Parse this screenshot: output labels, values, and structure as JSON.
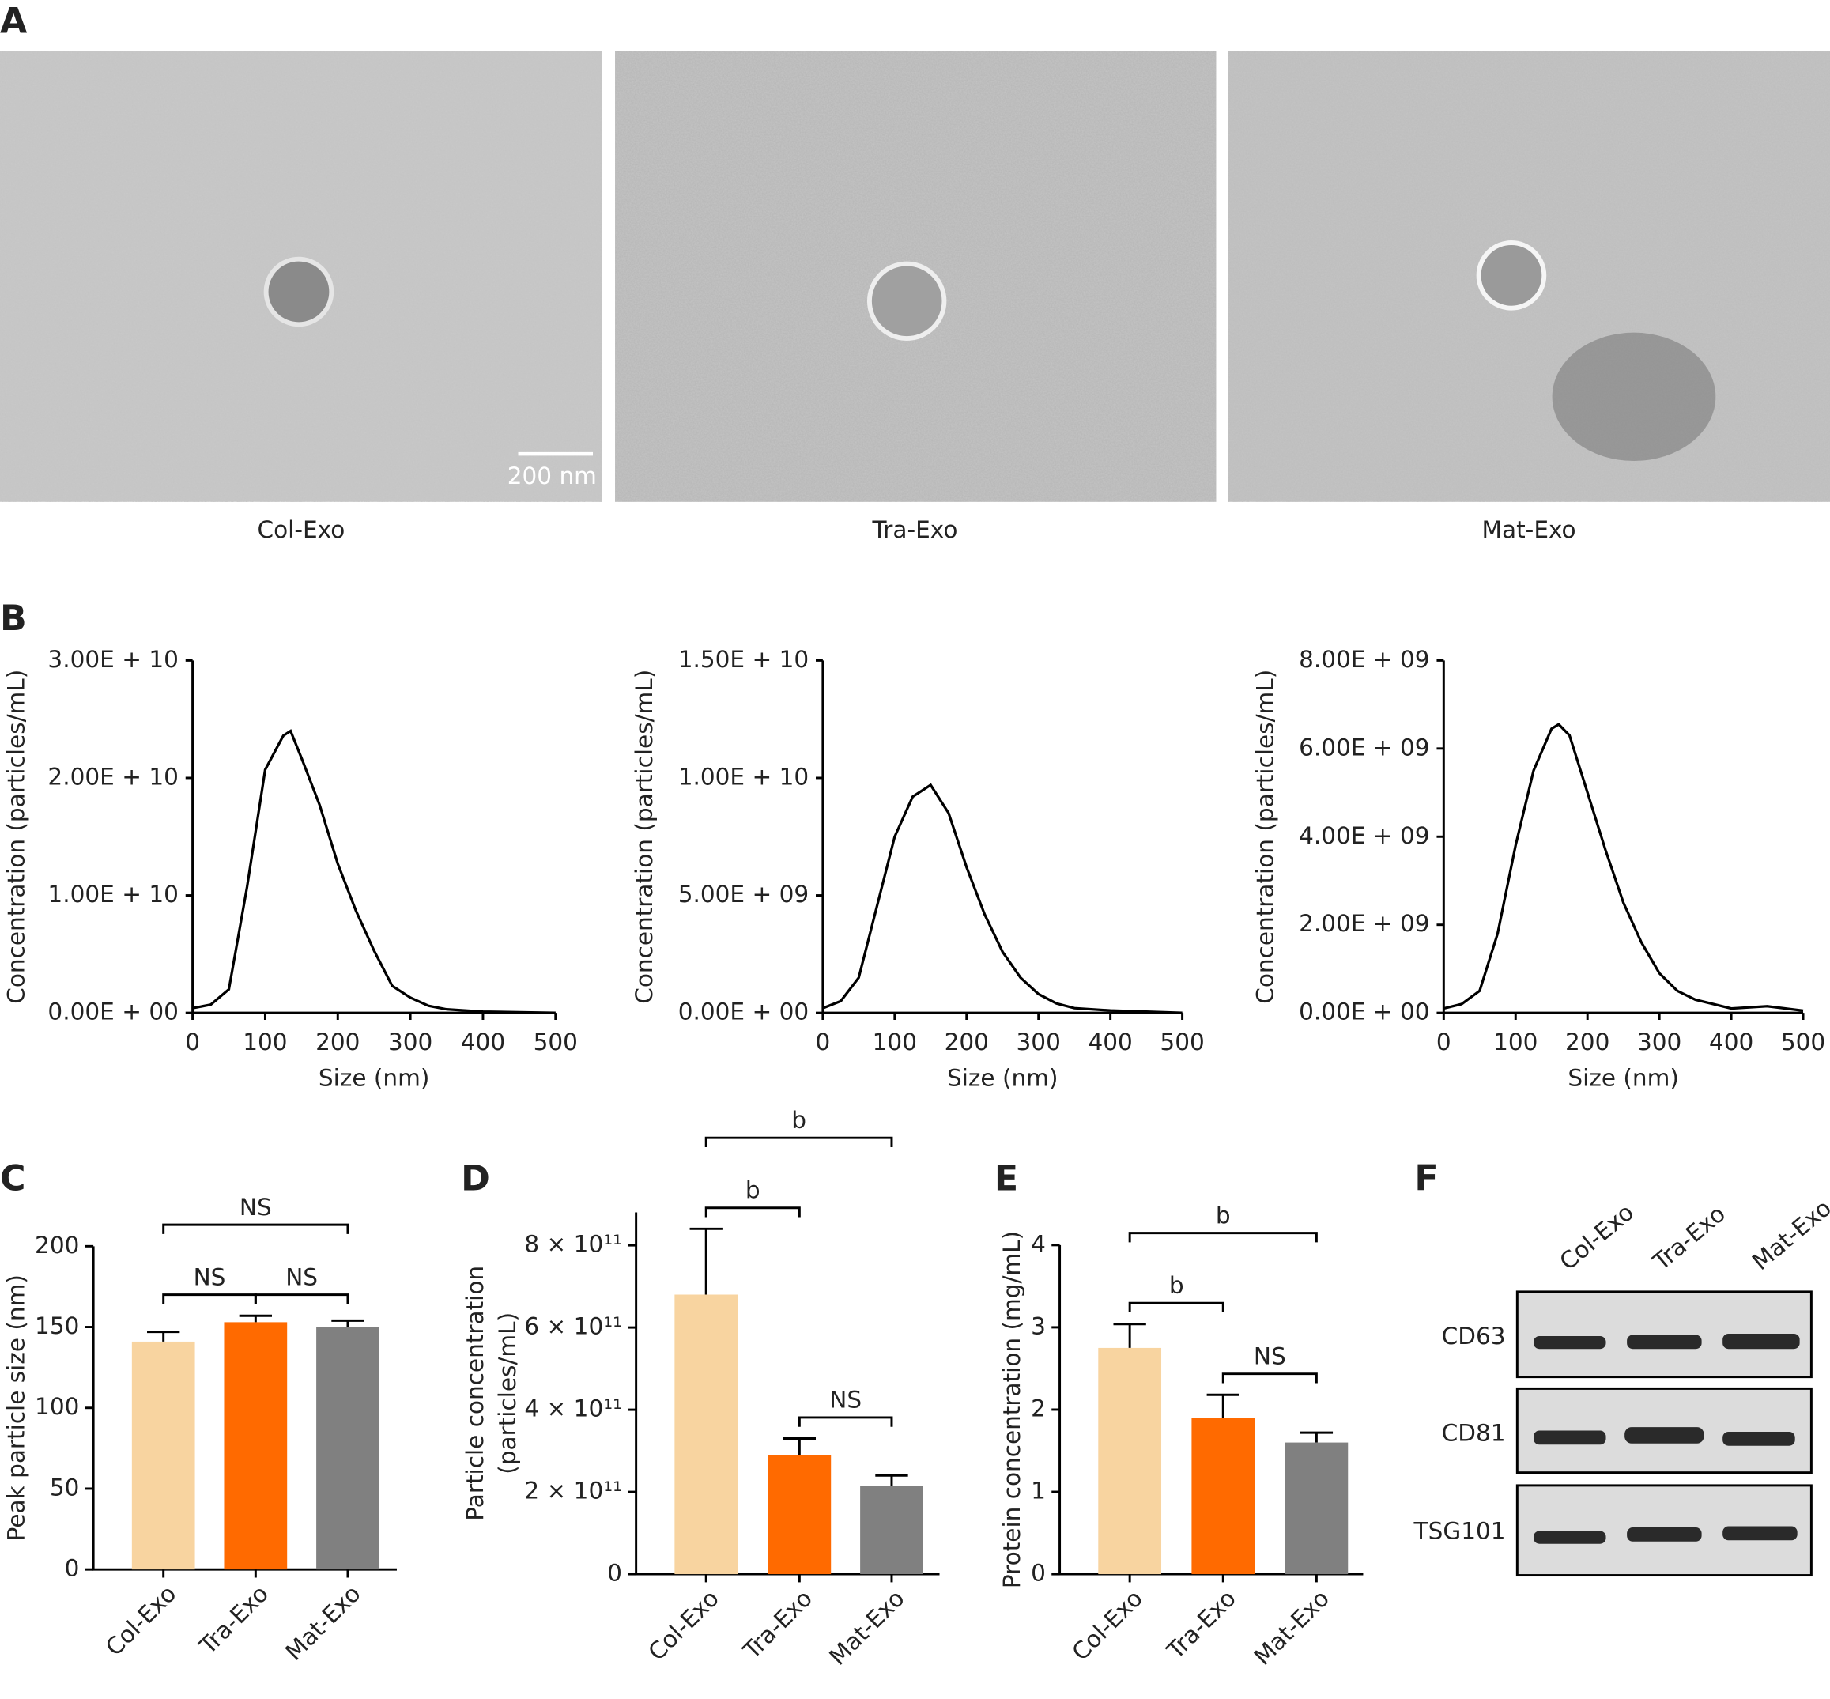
{
  "panel_labels": [
    "A",
    "B",
    "C",
    "D",
    "E",
    "F"
  ],
  "tem": {
    "captions": [
      "Col-Exo",
      "Tra-Exo",
      "Mat-Exo"
    ],
    "scale_bar": "200 nm"
  },
  "blot": {
    "lanes": [
      "Col-Exo",
      "Tra-Exo",
      "Mat-Exo"
    ],
    "proteins": [
      "CD63",
      "CD81",
      "TSG101"
    ]
  },
  "chart_data": [
    {
      "type": "line",
      "color": "#000000",
      "xlabel": "Size (nm)",
      "ylabel": "Concentration (particles/mL)",
      "x": [
        0,
        25,
        50,
        75,
        100,
        125,
        135,
        150,
        175,
        200,
        225,
        250,
        275,
        300,
        325,
        350,
        400,
        450,
        500
      ],
      "values": [
        400000000.0,
        700000000.0,
        2000000000.0,
        10700000000.0,
        20700000000.0,
        23600000000.0,
        24000000000.0,
        21700000000.0,
        17700000000.0,
        12700000000.0,
        8700000000.0,
        5300000000.0,
        2300000000.0,
        1300000000.0,
        600000000.0,
        300000000.0,
        100000000.0,
        50000000.0,
        0
      ],
      "xlim": [
        0,
        500
      ],
      "xticks": [
        0,
        100,
        200,
        300,
        400,
        500
      ],
      "ylim": [
        0,
        30000000000.0
      ],
      "yticks": [
        {
          "value": 0,
          "label": "0.00E + 00"
        },
        {
          "value": 10000000000.0,
          "label": "1.00E + 10"
        },
        {
          "value": 20000000000.0,
          "label": "2.00E + 10"
        },
        {
          "value": 30000000000.0,
          "label": "3.00E + 10"
        }
      ]
    },
    {
      "type": "line",
      "color": "#000000",
      "xlabel": "Size (nm)",
      "ylabel": "Concentration (particles/mL)",
      "x": [
        0,
        25,
        50,
        75,
        100,
        125,
        150,
        175,
        200,
        225,
        250,
        275,
        300,
        325,
        350,
        400,
        450,
        500
      ],
      "values": [
        200000000.0,
        500000000.0,
        1500000000.0,
        4500000000.0,
        7500000000.0,
        9200000000.0,
        9700000000.0,
        8500000000.0,
        6200000000.0,
        4200000000.0,
        2600000000.0,
        1500000000.0,
        800000000.0,
        400000000.0,
        200000000.0,
        100000000.0,
        50000000.0,
        0
      ],
      "xlim": [
        0,
        500
      ],
      "xticks": [
        0,
        100,
        200,
        300,
        400,
        500
      ],
      "ylim": [
        0,
        15000000000.0
      ],
      "yticks": [
        {
          "value": 0,
          "label": "0.00E + 00"
        },
        {
          "value": 5000000000.0,
          "label": "5.00E + 09"
        },
        {
          "value": 10000000000.0,
          "label": "1.00E + 10"
        },
        {
          "value": 15000000000.0,
          "label": "1.50E + 10"
        }
      ]
    },
    {
      "type": "line",
      "color": "#000000",
      "xlabel": "Size (nm)",
      "ylabel": "Concentration (particles/mL)",
      "x": [
        0,
        25,
        50,
        75,
        100,
        125,
        150,
        160,
        175,
        200,
        225,
        250,
        275,
        300,
        325,
        350,
        400,
        450,
        500
      ],
      "values": [
        100000000.0,
        200000000.0,
        500000000.0,
        1800000000.0,
        3800000000.0,
        5500000000.0,
        6450000000.0,
        6550000000.0,
        6300000000.0,
        5000000000.0,
        3700000000.0,
        2500000000.0,
        1600000000.0,
        900000000.0,
        500000000.0,
        300000000.0,
        100000000.0,
        150000000.0,
        50000000.0
      ],
      "xlim": [
        0,
        500
      ],
      "xticks": [
        0,
        100,
        200,
        300,
        400,
        500
      ],
      "ylim": [
        0,
        8000000000.0
      ],
      "yticks": [
        {
          "value": 0,
          "label": "0.00E + 00"
        },
        {
          "value": 2000000000.0,
          "label": "2.00E + 09"
        },
        {
          "value": 4000000000.0,
          "label": "4.00E + 09"
        },
        {
          "value": 6000000000.0,
          "label": "6.00E + 09"
        },
        {
          "value": 8000000000.0,
          "label": "8.00E + 09"
        }
      ]
    },
    {
      "type": "bar",
      "ylabel": "Peak particle size (nm)",
      "categories": [
        "Col-Exo",
        "Tra-Exo",
        "Mat-Exo"
      ],
      "values": [
        141,
        153,
        150
      ],
      "errors": [
        6,
        4,
        4
      ],
      "colors": [
        "#f8d4a0",
        "#ff6a00",
        "#808080"
      ],
      "ylim": [
        0,
        200
      ],
      "yticks": [
        0,
        50,
        100,
        150,
        200
      ],
      "annotations": [
        {
          "from": 0,
          "to": 1,
          "label": "NS"
        },
        {
          "from": 1,
          "to": 2,
          "label": "NS"
        },
        {
          "from": 0,
          "to": 2,
          "label": "NS"
        }
      ]
    },
    {
      "type": "bar",
      "ylabel": [
        "Particle concentration",
        "(particles/mL)"
      ],
      "categories": [
        "Col-Exo",
        "Tra-Exo",
        "Mat-Exo"
      ],
      "values": [
        680000000000.0,
        290000000000.0,
        215000000000.0
      ],
      "errors": [
        160000000000.0,
        40000000000.0,
        25000000000.0
      ],
      "colors": [
        "#f8d4a0",
        "#ff6a00",
        "#808080"
      ],
      "ylim": [
        0,
        880000000000.0
      ],
      "yticks": [
        0,
        {
          "value": 200000000000.0,
          "label": "2 × 10¹¹"
        },
        {
          "value": 400000000000.0,
          "label": "4 × 10¹¹"
        },
        {
          "value": 600000000000.0,
          "label": "6 × 10¹¹"
        },
        {
          "value": 800000000000.0,
          "label": "8 × 10¹¹"
        }
      ],
      "annotations": [
        {
          "from": 1,
          "to": 2,
          "label": "NS"
        },
        {
          "from": 0,
          "to": 1,
          "label": "b"
        },
        {
          "from": 0,
          "to": 2,
          "label": "b"
        }
      ]
    },
    {
      "type": "bar",
      "ylabel": "Protein concentration (mg/mL)",
      "categories": [
        "Col-Exo",
        "Tra-Exo",
        "Mat-Exo"
      ],
      "values": [
        2.75,
        1.9,
        1.6
      ],
      "errors": [
        0.29,
        0.28,
        0.12
      ],
      "colors": [
        "#f8d4a0",
        "#ff6a00",
        "#808080"
      ],
      "ylim": [
        0,
        4
      ],
      "yticks": [
        0,
        1,
        2,
        3,
        4
      ],
      "annotations": [
        {
          "from": 1,
          "to": 2,
          "label": "NS"
        },
        {
          "from": 0,
          "to": 1,
          "label": "b"
        },
        {
          "from": 0,
          "to": 2,
          "label": "b"
        }
      ]
    }
  ]
}
